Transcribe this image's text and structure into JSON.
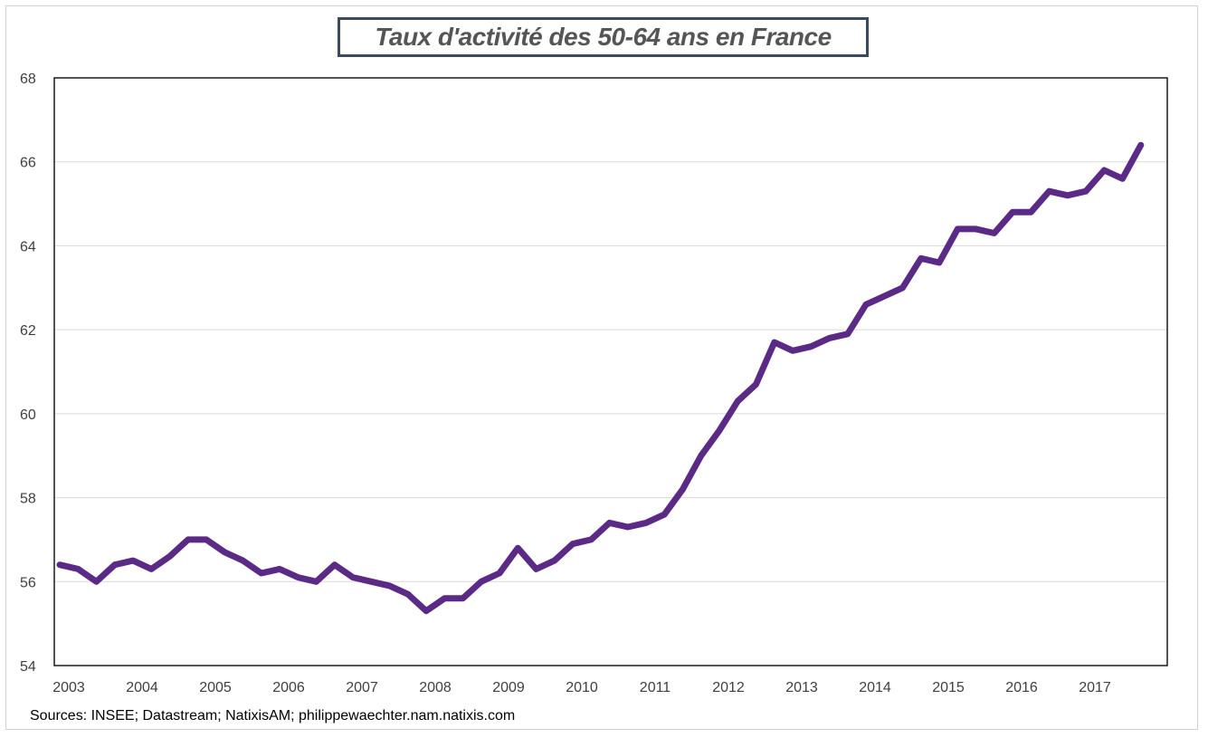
{
  "chart_data": {
    "type": "line",
    "title": "Taux d'activité des 50-64 ans en France",
    "xlabel": "",
    "ylabel": "",
    "ylim": [
      54,
      68
    ],
    "yticks": [
      "54",
      "56",
      "58",
      "60",
      "62",
      "64",
      "66",
      "68"
    ],
    "xticks": [
      "2003",
      "2004",
      "2005",
      "2006",
      "2007",
      "2008",
      "2009",
      "2010",
      "2011",
      "2012",
      "2013",
      "2014",
      "2015",
      "2016",
      "2017"
    ],
    "grid": true,
    "legend": "none",
    "line_color": "#5b2a86",
    "series": [
      {
        "x": [
          "2003-Q1",
          "2003-Q2",
          "2003-Q3",
          "2003-Q4",
          "2004-Q1",
          "2004-Q2",
          "2004-Q3",
          "2004-Q4",
          "2005-Q1",
          "2005-Q2",
          "2005-Q3",
          "2005-Q4",
          "2006-Q1",
          "2006-Q2",
          "2006-Q3",
          "2006-Q4",
          "2007-Q1",
          "2007-Q2",
          "2007-Q3",
          "2007-Q4",
          "2008-Q1",
          "2008-Q2",
          "2008-Q3",
          "2008-Q4",
          "2009-Q1",
          "2009-Q2",
          "2009-Q3",
          "2009-Q4",
          "2010-Q1",
          "2010-Q2",
          "2010-Q3",
          "2010-Q4",
          "2011-Q1",
          "2011-Q2",
          "2011-Q3",
          "2011-Q4",
          "2012-Q1",
          "2012-Q2",
          "2012-Q3",
          "2012-Q4",
          "2013-Q1",
          "2013-Q2",
          "2013-Q3",
          "2013-Q4",
          "2014-Q1",
          "2014-Q2",
          "2014-Q3",
          "2014-Q4",
          "2015-Q1",
          "2015-Q2",
          "2015-Q3",
          "2015-Q4",
          "2016-Q1",
          "2016-Q2",
          "2016-Q3",
          "2016-Q4",
          "2017-Q1",
          "2017-Q2",
          "2017-Q3",
          "2017-Q4"
        ],
        "values": [
          56.4,
          56.3,
          56.0,
          56.4,
          56.5,
          56.3,
          56.6,
          57.0,
          57.0,
          56.7,
          56.5,
          56.2,
          56.3,
          56.1,
          56.0,
          56.4,
          56.1,
          56.0,
          55.9,
          55.7,
          55.3,
          55.6,
          55.6,
          56.0,
          56.2,
          56.8,
          56.3,
          56.5,
          56.9,
          57.0,
          57.4,
          57.3,
          57.4,
          57.6,
          58.2,
          59.0,
          59.6,
          60.3,
          60.7,
          61.7,
          61.5,
          61.6,
          61.8,
          61.9,
          62.6,
          62.8,
          63.0,
          63.7,
          63.6,
          64.4,
          64.4,
          64.3,
          64.8,
          64.8,
          65.3,
          65.2,
          65.3,
          65.8,
          65.6,
          66.4
        ]
      }
    ]
  },
  "footer": {
    "source": "Sources: INSEE; Datastream; NatixisAM; philippewaechter.nam.natixis.com"
  }
}
